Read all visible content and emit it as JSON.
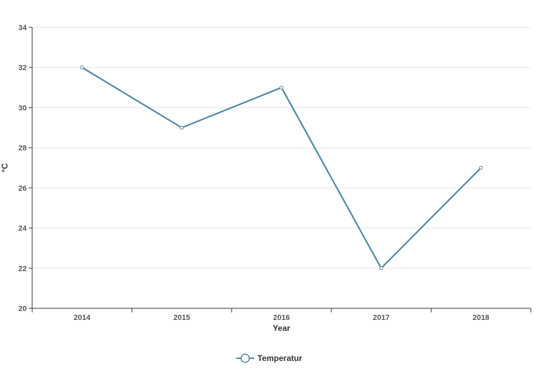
{
  "chart_data": {
    "type": "line",
    "title": "",
    "xlabel": "Year",
    "ylabel": "°C",
    "categories": [
      "2014",
      "2015",
      "2016",
      "2017",
      "2018"
    ],
    "series": [
      {
        "name": "Temperatur",
        "values": [
          32,
          29,
          31,
          22,
          27
        ],
        "color": "#4e87a0"
      }
    ],
    "ylim": [
      20,
      34
    ],
    "yticks": [
      20,
      22,
      24,
      26,
      28,
      30,
      32,
      34
    ],
    "grid": true,
    "legend_position": "bottom-center"
  }
}
